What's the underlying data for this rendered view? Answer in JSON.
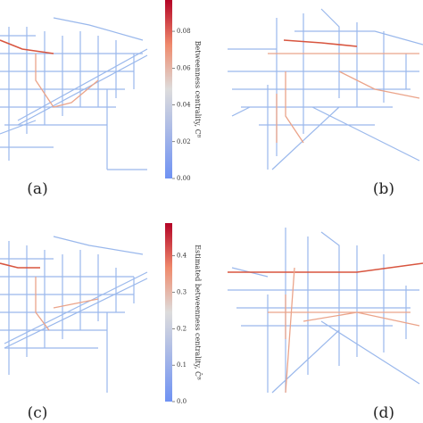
{
  "panels": [
    {
      "label": "(a)"
    },
    {
      "label": "(b)"
    },
    {
      "label": "(c)"
    },
    {
      "label": "(d)"
    }
  ],
  "colorbars": [
    {
      "label": "Betweenness centrality, Cᴮ",
      "lim": [
        0,
        0.097
      ],
      "ticks": [
        {
          "value": 0,
          "label": "0.00"
        },
        0.02,
        0.04,
        0.06,
        0.08
      ]
    },
    {
      "label": "Estimated betweenness centrality, Ĉᴮ",
      "lim": [
        0,
        0.49
      ],
      "ticks": [
        {
          "value": 0,
          "label": "0.0"
        },
        0.1,
        0.2,
        0.3,
        0.4
      ]
    }
  ]
}
